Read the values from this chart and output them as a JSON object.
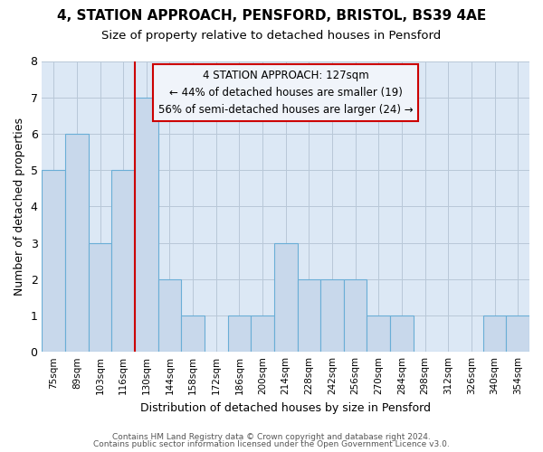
{
  "title1": "4, STATION APPROACH, PENSFORD, BRISTOL, BS39 4AE",
  "title2": "Size of property relative to detached houses in Pensford",
  "xlabel": "Distribution of detached houses by size in Pensford",
  "ylabel": "Number of detached properties",
  "bin_labels": [
    "75sqm",
    "89sqm",
    "103sqm",
    "116sqm",
    "130sqm",
    "144sqm",
    "158sqm",
    "172sqm",
    "186sqm",
    "200sqm",
    "214sqm",
    "228sqm",
    "242sqm",
    "256sqm",
    "270sqm",
    "284sqm",
    "298sqm",
    "312sqm",
    "326sqm",
    "340sqm",
    "354sqm"
  ],
  "bar_values": [
    5,
    6,
    3,
    5,
    7,
    2,
    1,
    0,
    1,
    1,
    3,
    2,
    2,
    2,
    1,
    1,
    0,
    0,
    0,
    1,
    1
  ],
  "bar_color": "#c8d8eb",
  "bar_edgecolor": "#6aaed6",
  "property_bin_index": 4,
  "red_line_color": "#cc0000",
  "annotation_text": "4 STATION APPROACH: 127sqm\n← 44% of detached houses are smaller (19)\n56% of semi-detached houses are larger (24) →",
  "annotation_box_edgecolor": "#cc0000",
  "annotation_box_facecolor": "#f0f4fa",
  "ylim": [
    0,
    8
  ],
  "yticks": [
    0,
    1,
    2,
    3,
    4,
    5,
    6,
    7,
    8
  ],
  "footer1": "Contains HM Land Registry data © Crown copyright and database right 2024.",
  "footer2": "Contains public sector information licensed under the Open Government Licence v3.0.",
  "fig_background_color": "#ffffff",
  "plot_background_color": "#dce8f5",
  "title1_fontsize": 11,
  "title2_fontsize": 9.5,
  "grid_color": "#b8c8d8"
}
